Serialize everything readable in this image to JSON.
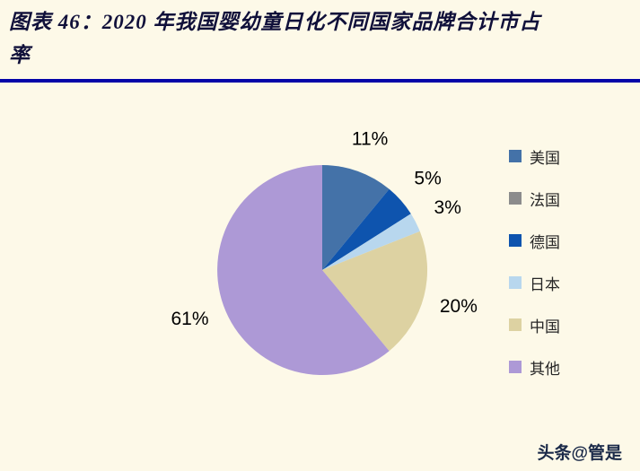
{
  "header": {
    "title_lines": [
      "图表 46：2020 年我国婴幼童日化不同国家品牌合计市占",
      "率"
    ]
  },
  "chart_data": {
    "type": "pie",
    "title": "2020 年我国婴幼童日化不同国家品牌合计市占率",
    "categories": [
      "美国",
      "法国",
      "德国",
      "日本",
      "中国",
      "其他"
    ],
    "values": [
      11,
      0,
      5,
      3,
      20,
      61
    ],
    "unit": "%",
    "colors": [
      "#4472a8",
      "#8c8c8c",
      "#0e54ae",
      "#b8d7ee",
      "#ddd2a2",
      "#ad99d6"
    ],
    "start_angle_deg": -90,
    "direction": "clockwise",
    "legend_position": "right",
    "data_labels_shown": [
      "11%",
      "5%",
      "3%",
      "20%",
      "61%"
    ]
  },
  "watermark": "头条@管是",
  "colors": {
    "background": "#fdf9e8",
    "title_text": "#10103a",
    "divider": "#0404a8",
    "label_text": "#000000",
    "legend_text": "#262626",
    "watermark_text": "#1b2a49"
  }
}
